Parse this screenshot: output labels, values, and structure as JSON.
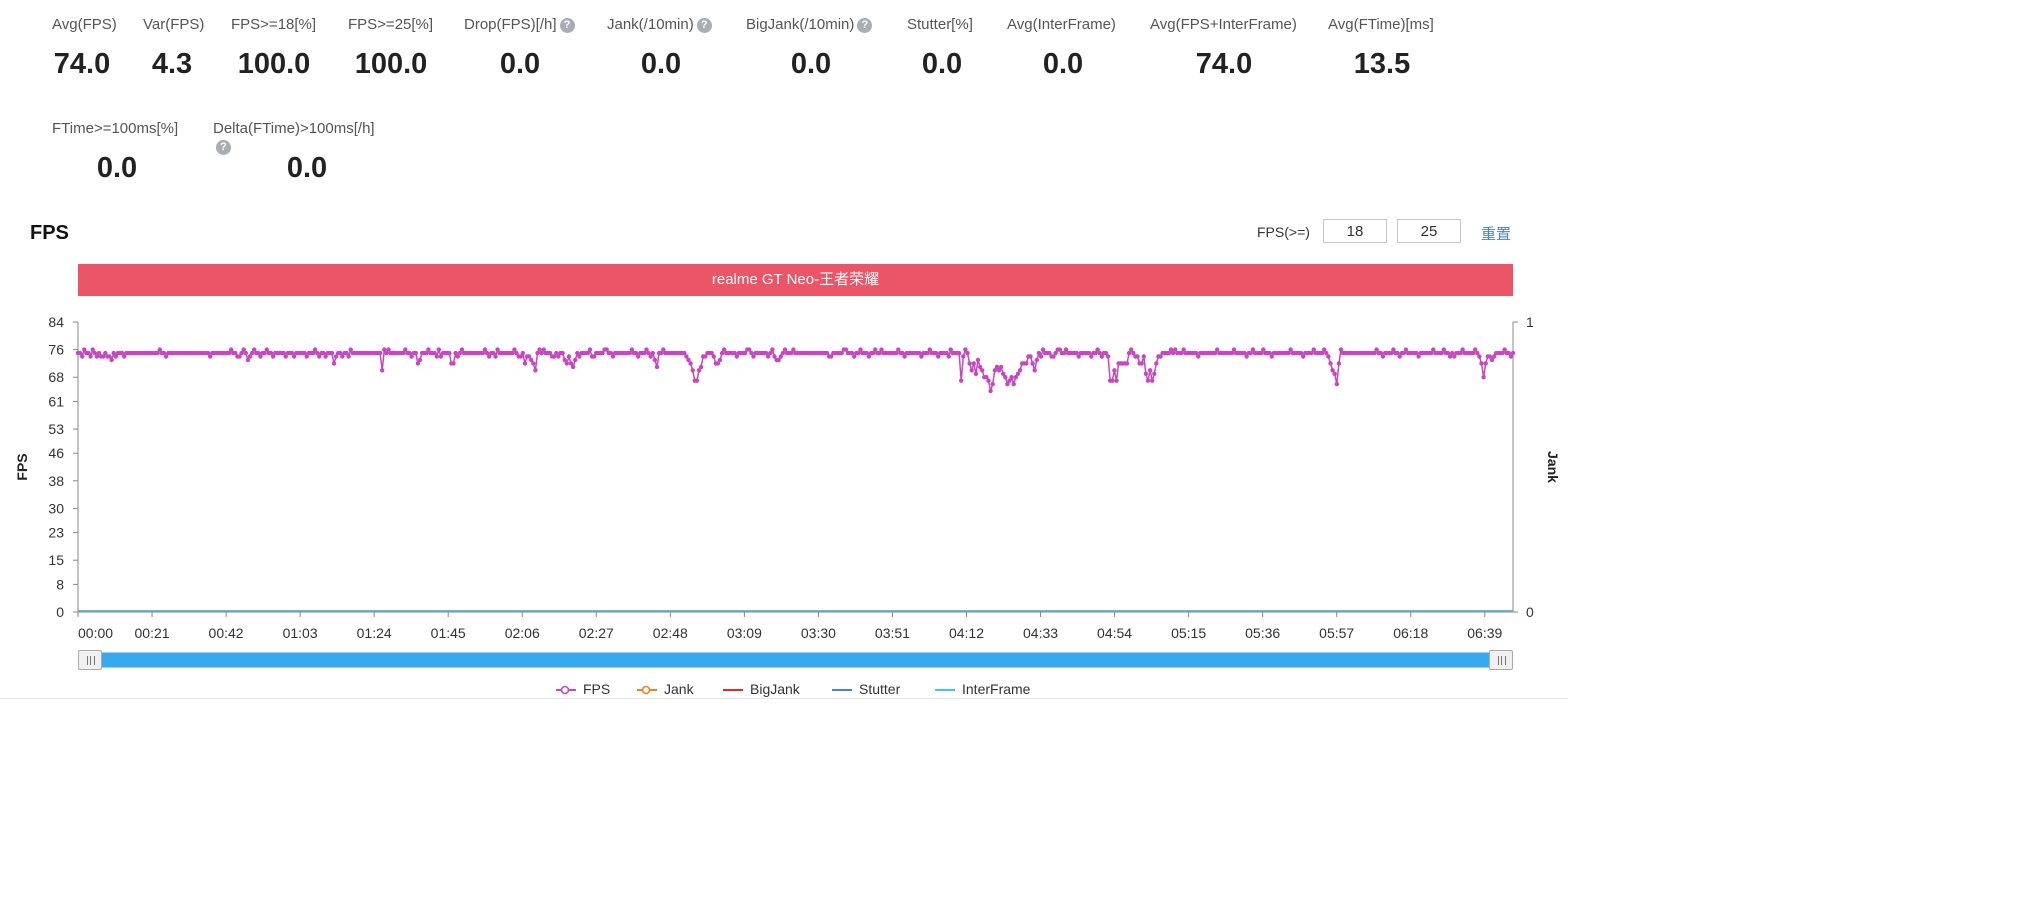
{
  "metrics": [
    {
      "label": "Avg(FPS)",
      "value": "74.0",
      "help": false
    },
    {
      "label": "Var(FPS)",
      "value": "4.3",
      "help": false
    },
    {
      "label": "FPS>=18[%]",
      "value": "100.0",
      "help": false
    },
    {
      "label": "FPS>=25[%]",
      "value": "100.0",
      "help": false
    },
    {
      "label": "Drop(FPS)[/h]",
      "value": "0.0",
      "help": true
    },
    {
      "label": "Jank(/10min)",
      "value": "0.0",
      "help": true
    },
    {
      "label": "BigJank(/10min)",
      "value": "0.0",
      "help": true
    },
    {
      "label": "Stutter[%]",
      "value": "0.0",
      "help": false
    },
    {
      "label": "Avg(InterFrame)",
      "value": "0.0",
      "help": false
    },
    {
      "label": "Avg(FPS+InterFrame)",
      "value": "74.0",
      "help": false
    },
    {
      "label": "Avg(FTime)[ms]",
      "value": "13.5",
      "help": false
    },
    {
      "label": "FTime>=100ms[%]",
      "value": "0.0",
      "help": false
    },
    {
      "label": "Delta(FTime)>100ms[/h]",
      "value": "0.0",
      "help": true
    }
  ],
  "help_glyph": "?",
  "chart_header": {
    "title": "FPS",
    "filter_label": "FPS(>=)",
    "threshold_low": "18",
    "threshold_high": "25",
    "reset_label": "重置"
  },
  "chart_data": {
    "type": "line",
    "banner": "realme GT Neo-王者荣耀",
    "ylabel": "FPS",
    "y2label": "Jank",
    "ylim": [
      0,
      84
    ],
    "yticks": [
      "0",
      "8",
      "15",
      "23",
      "30",
      "38",
      "46",
      "53",
      "61",
      "68",
      "76",
      "84"
    ],
    "y2lim": [
      0,
      1
    ],
    "y2ticks": [
      "0",
      "1"
    ],
    "xlim_seconds": [
      0,
      407
    ],
    "xticks": [
      "00:00",
      "00:21",
      "00:42",
      "01:03",
      "01:24",
      "01:45",
      "02:06",
      "02:27",
      "02:48",
      "03:09",
      "03:30",
      "03:51",
      "04:12",
      "04:33",
      "04:54",
      "05:15",
      "05:36",
      "05:57",
      "06:18",
      "06:39"
    ],
    "legend_position": "bottom",
    "colors": {
      "FPS": "#c846c0",
      "Jank": "#f0812b",
      "BigJank": "#e02a2a",
      "Stutter": "#3f84de",
      "InterFrame": "#3fc8e0"
    },
    "series": [
      {
        "name": "FPS",
        "values": [
          75,
          75,
          74,
          76,
          75,
          75,
          74,
          76,
          75,
          74,
          75,
          74,
          74,
          75,
          74,
          74,
          73,
          75,
          74,
          75,
          75,
          75,
          74,
          75,
          75,
          75,
          75,
          75,
          75,
          75,
          75,
          75,
          75,
          75,
          75,
          75,
          75,
          75,
          75,
          76,
          75,
          75,
          74,
          75,
          75,
          75,
          75,
          75,
          75,
          75,
          75,
          75,
          75,
          75,
          75,
          75,
          75,
          75,
          75,
          75,
          75,
          75,
          75,
          74,
          75,
          75,
          75,
          75,
          75,
          75,
          75,
          75,
          75,
          76,
          75,
          75,
          74,
          74,
          75,
          76,
          75,
          73,
          74,
          75,
          76,
          75,
          75,
          74,
          75,
          75,
          76,
          75,
          75,
          74,
          75,
          75,
          75,
          75,
          75,
          74,
          75,
          75,
          75,
          74,
          75,
          75,
          75,
          75,
          75,
          74,
          75,
          75,
          75,
          76,
          75,
          74,
          75,
          75,
          74,
          75,
          75,
          75,
          72,
          74,
          75,
          75,
          74,
          75,
          75,
          74,
          76,
          75,
          75,
          75,
          75,
          75,
          75,
          75,
          75,
          75,
          75,
          75,
          75,
          75,
          75,
          70,
          76,
          75,
          76,
          75,
          75,
          75,
          75,
          75,
          75,
          75,
          76,
          75,
          75,
          74,
          75,
          75,
          72,
          73,
          75,
          75,
          75,
          76,
          75,
          75,
          75,
          74,
          76,
          74,
          75,
          75,
          75,
          75,
          72,
          72,
          75,
          74,
          75,
          76,
          75,
          75,
          75,
          75,
          75,
          75,
          75,
          75,
          75,
          75,
          76,
          75,
          74,
          75,
          75,
          74,
          76,
          75,
          75,
          75,
          75,
          75,
          75,
          75,
          76,
          75,
          74,
          74,
          75,
          72,
          74,
          74,
          73,
          72,
          70,
          75,
          76,
          75,
          76,
          75,
          75,
          75,
          74,
          74,
          75,
          74,
          75,
          75,
          73,
          72,
          74,
          72,
          71,
          73,
          75,
          74,
          75,
          75,
          75,
          75,
          76,
          74,
          74,
          75,
          75,
          75,
          75,
          76,
          76,
          75,
          75,
          74,
          75,
          75,
          75,
          75,
          75,
          75,
          75,
          75,
          76,
          75,
          75,
          74,
          75,
          75,
          75,
          76,
          75,
          74,
          75,
          73,
          71,
          75,
          75,
          76,
          75,
          75,
          75,
          75,
          75,
          75,
          75,
          75,
          75,
          75,
          74,
          73,
          72,
          70,
          67,
          67,
          70,
          71,
          74,
          74,
          75,
          75,
          75,
          74,
          72,
          72,
          73,
          75,
          76,
          75,
          75,
          75,
          75,
          75,
          74,
          75,
          75,
          75,
          75,
          76,
          76,
          75,
          74,
          75,
          75,
          75,
          75,
          75,
          75,
          74,
          75,
          76,
          74,
          73,
          73,
          74,
          75,
          76,
          75,
          75,
          75,
          76,
          75,
          75,
          75,
          75,
          75,
          75,
          75,
          75,
          75,
          75,
          75,
          75,
          75,
          75,
          75,
          75,
          74,
          74,
          75,
          75,
          75,
          75,
          75,
          76,
          76,
          75,
          75,
          75,
          74,
          75,
          75,
          76,
          75,
          75,
          75,
          74,
          75,
          75,
          76,
          75,
          75,
          76,
          75,
          75,
          75,
          75,
          75,
          75,
          75,
          76,
          75,
          75,
          74,
          75,
          75,
          75,
          75,
          75,
          75,
          75,
          74,
          75,
          75,
          75,
          76,
          75,
          75,
          75,
          74,
          75,
          75,
          75,
          75,
          74,
          76,
          75,
          75,
          75,
          75,
          67,
          74,
          76,
          75,
          72,
          70,
          72,
          69,
          73,
          71,
          70,
          68,
          68,
          67,
          64,
          66,
          70,
          71,
          70,
          71,
          69,
          68,
          66,
          67,
          68,
          66,
          68,
          69,
          70,
          72,
          72,
          72,
          74,
          74,
          72,
          70,
          73,
          75,
          74,
          76,
          75,
          75,
          75,
          74,
          74,
          75,
          76,
          76,
          75,
          75,
          76,
          75,
          75,
          75,
          75,
          75,
          74,
          75,
          75,
          75,
          75,
          75,
          74,
          75,
          75,
          76,
          75,
          74,
          75,
          75,
          74,
          67,
          67,
          70,
          67,
          72,
          72,
          72,
          72,
          72,
          75,
          76,
          75,
          74,
          74,
          72,
          72,
          74,
          69,
          67,
          70,
          67,
          69,
          72,
          74,
          74,
          75,
          75,
          75,
          75,
          76,
          75,
          76,
          75,
          75,
          75,
          76,
          75,
          75,
          75,
          75,
          75,
          75,
          74,
          75,
          75,
          75,
          75,
          75,
          75,
          75,
          75,
          76,
          75,
          75,
          75,
          75,
          75,
          75,
          75,
          76,
          75,
          75,
          75,
          75,
          75,
          74,
          75,
          75,
          76,
          75,
          75,
          75,
          75,
          76,
          75,
          75,
          75,
          74,
          75,
          75,
          75,
          75,
          75,
          75,
          75,
          75,
          76,
          75,
          75,
          75,
          75,
          75,
          74,
          75,
          75,
          75,
          75,
          76,
          75,
          75,
          75,
          75,
          76,
          75,
          74,
          72,
          70,
          69,
          66,
          72,
          76,
          75,
          75,
          75,
          75,
          75,
          75,
          75,
          75,
          75,
          75,
          75,
          75,
          75,
          75,
          75,
          75,
          76,
          75,
          75,
          74,
          75,
          75,
          75,
          75,
          76,
          75,
          75,
          74,
          75,
          75,
          76,
          75,
          75,
          75,
          75,
          75,
          74,
          75,
          75,
          75,
          75,
          75,
          75,
          76,
          75,
          75,
          75,
          75,
          76,
          75,
          75,
          74,
          75,
          74,
          75,
          75,
          75,
          76,
          75,
          75,
          75,
          75,
          75,
          76,
          75,
          74,
          72,
          68,
          72,
          74,
          74,
          73,
          74,
          75,
          75,
          75,
          75,
          76,
          75,
          75,
          74,
          75
        ]
      },
      {
        "name": "Jank",
        "values": [
          0,
          0
        ]
      },
      {
        "name": "BigJank",
        "values": [
          0,
          0
        ]
      },
      {
        "name": "Stutter",
        "values": [
          0,
          0
        ]
      },
      {
        "name": "InterFrame",
        "values": [
          0,
          0
        ]
      }
    ]
  }
}
